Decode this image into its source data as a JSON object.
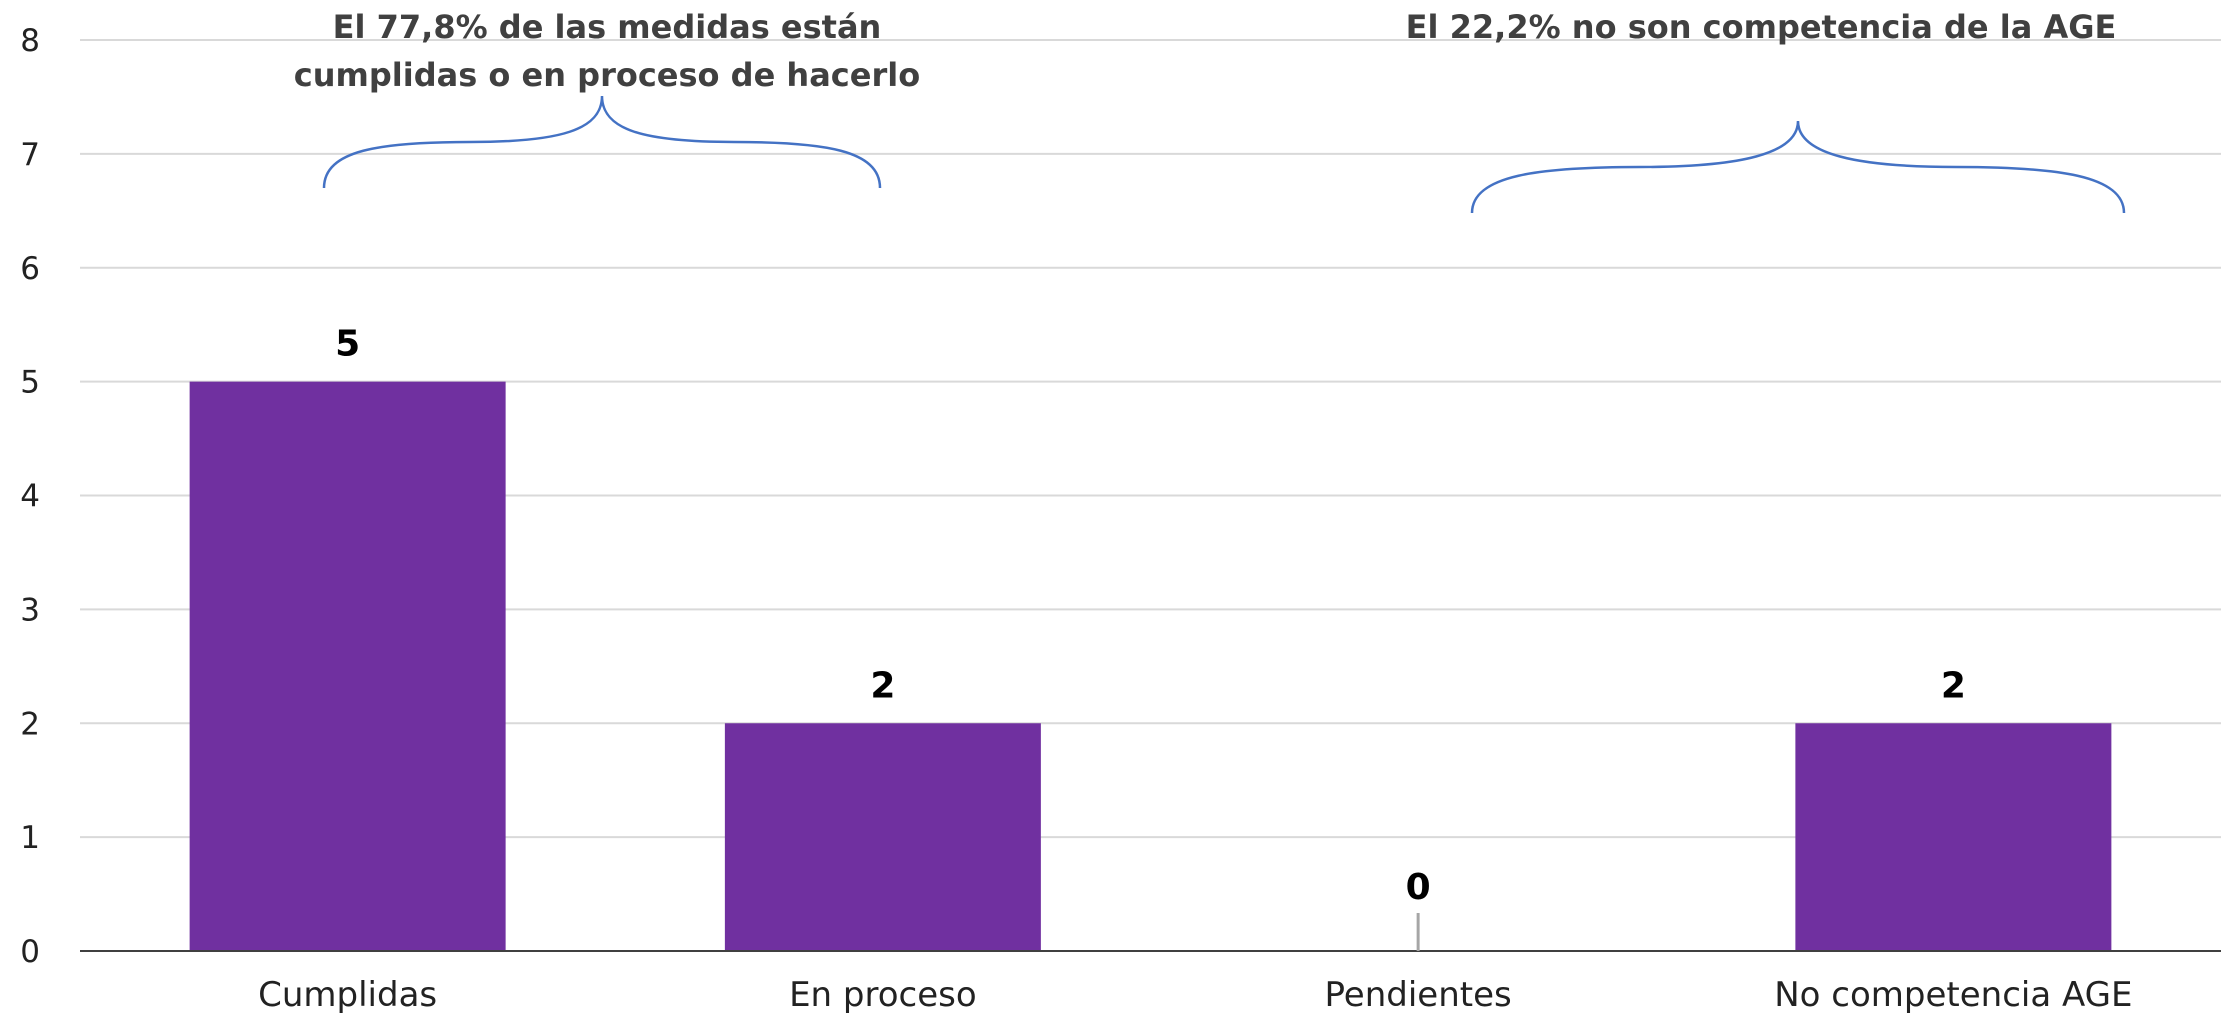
{
  "chart_data": {
    "type": "bar",
    "categories": [
      "Cumplidas",
      "En proceso",
      "Pendientes",
      "No competencia AGE"
    ],
    "values": [
      5,
      2,
      0,
      2
    ],
    "data_labels": [
      "5",
      "2",
      "0",
      "2"
    ],
    "title": "",
    "xlabel": "",
    "ylabel": "",
    "ylim": [
      0,
      8
    ],
    "yticks": [
      "0",
      "1",
      "2",
      "3",
      "4",
      "5",
      "6",
      "7",
      "8"
    ],
    "grid": true,
    "legend": "none",
    "bar_color": "#7030a0",
    "annotations": [
      {
        "lines": [
          "El 77,8% de las medidas están",
          "cumplidas o en proceso de hacerlo"
        ],
        "spans_categories": [
          0,
          1
        ]
      },
      {
        "lines": [
          "El 22,2% no son competencia de la AGE"
        ],
        "spans_categories": [
          2,
          3
        ]
      }
    ],
    "annotation_brace_color": "#4472c4"
  }
}
